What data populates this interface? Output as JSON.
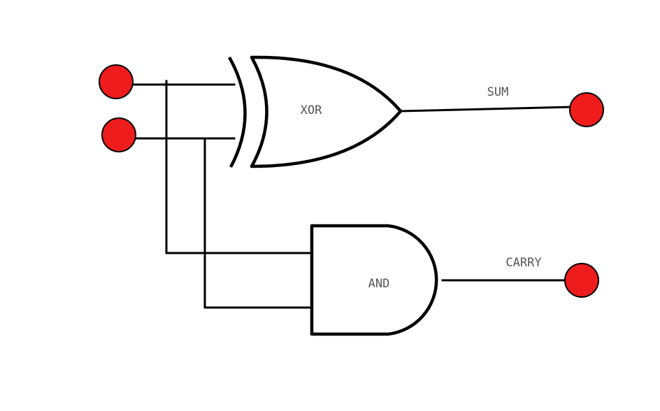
{
  "colors": {
    "node_fill": "#ee1c1c",
    "node_stroke": "#000000",
    "wire": "#000000",
    "label_text": "#555555",
    "background": "#ffffff"
  },
  "gates": {
    "xor": {
      "label": "XOR"
    },
    "and": {
      "label": "AND"
    }
  },
  "outputs": {
    "sum": {
      "label": "SUM"
    },
    "carry": {
      "label": "CARRY"
    }
  },
  "nodes": {
    "input_a": "input-node",
    "input_b": "input-node",
    "sum_out": "output-node",
    "carry_out": "output-node"
  }
}
